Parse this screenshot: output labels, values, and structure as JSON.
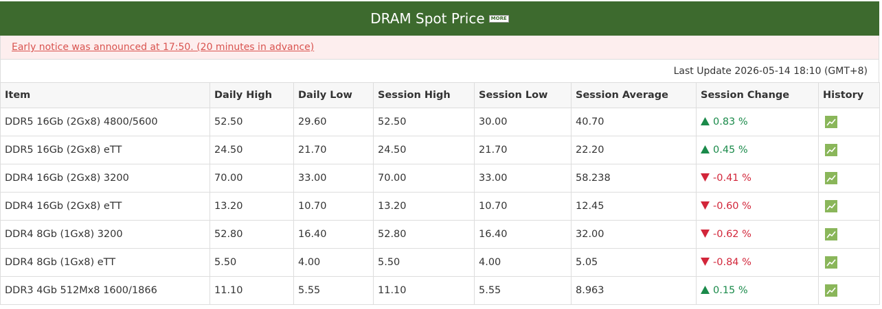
{
  "header": {
    "title": "DRAM Spot Price",
    "badge": "MORE"
  },
  "notice": "Early notice was announced at 17:50. (20 minutes in advance)",
  "last_update": "Last Update 2026-05-14 18:10 (GMT+8)",
  "table": {
    "columns": [
      "Item",
      "Daily High",
      "Daily Low",
      "Session High",
      "Session Low",
      "Session Average",
      "Session Change",
      "History"
    ],
    "rows": [
      [
        "DDR5 16Gb (2Gx8) 4800/5600",
        "52.50",
        "29.60",
        "52.50",
        "30.00",
        "40.70",
        "0.83 %"
      ],
      [
        "DDR5 16Gb (2Gx8) eTT",
        "24.50",
        "21.70",
        "24.50",
        "21.70",
        "22.20",
        "0.45 %"
      ],
      [
        "DDR4 16Gb (2Gx8) 3200",
        "70.00",
        "33.00",
        "70.00",
        "33.00",
        "58.238",
        "-0.41 %"
      ],
      [
        "DDR4 16Gb (2Gx8) eTT",
        "13.20",
        "10.70",
        "13.20",
        "10.70",
        "12.45",
        "-0.60 %"
      ],
      [
        "DDR4 8Gb (1Gx8) 3200",
        "52.80",
        "16.40",
        "52.80",
        "16.40",
        "32.00",
        "-0.62 %"
      ],
      [
        "DDR4 8Gb (1Gx8) eTT",
        "5.50",
        "4.00",
        "5.50",
        "4.00",
        "5.05",
        "-0.84 %"
      ],
      [
        "DDR3 4Gb 512Mx8 1600/1866",
        "11.10",
        "5.55",
        "11.10",
        "5.55",
        "8.963",
        "0.15 %"
      ]
    ]
  }
}
